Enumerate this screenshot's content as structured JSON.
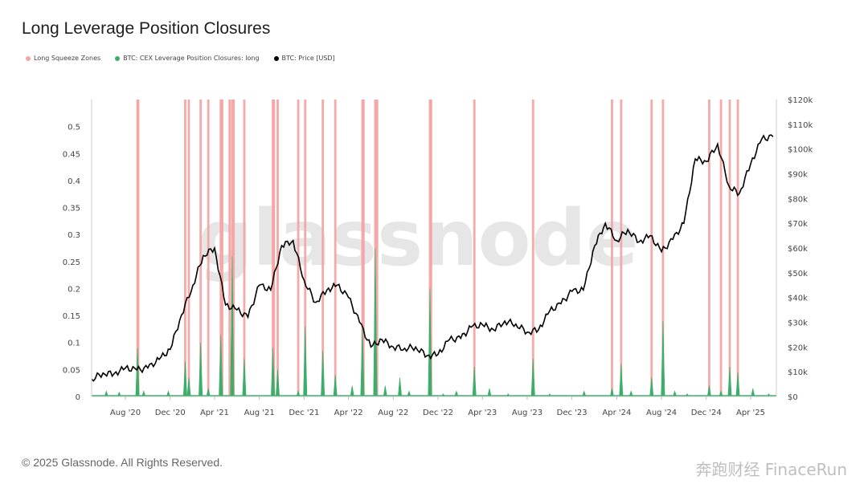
{
  "header": {
    "title": "Long Leverage Position Closures"
  },
  "legend": [
    {
      "label": "Long Squeeze Zones",
      "color": "#f4a4a4"
    },
    {
      "label": "BTC: CEX Leverage Position Closures: long",
      "color": "#3cae6a"
    },
    {
      "label": "BTC: Price [USD]",
      "color": "#000000"
    }
  ],
  "footer": {
    "copyright": "© 2025 Glassnode. All Rights Reserved.",
    "watermark2": "奔跑财经 FinaceRun"
  },
  "chart_data": {
    "type": "line",
    "watermark": "glassnode",
    "x_range": [
      "2020-05-01",
      "2025-06-10"
    ],
    "x_ticks": [
      "Aug '20",
      "Dec '20",
      "Apr '21",
      "Aug '21",
      "Dec '21",
      "Apr '22",
      "Aug '22",
      "Dec '22",
      "Apr '23",
      "Aug '23",
      "Dec '23",
      "Apr '24",
      "Aug '24",
      "Dec '24",
      "Apr '25"
    ],
    "x_tick_dates": [
      "2020-08-01",
      "2020-12-01",
      "2021-04-01",
      "2021-08-01",
      "2021-12-01",
      "2022-04-01",
      "2022-08-01",
      "2022-12-01",
      "2023-04-01",
      "2023-08-01",
      "2023-12-01",
      "2024-04-01",
      "2024-08-01",
      "2024-12-01",
      "2025-04-01"
    ],
    "y_left": {
      "min": 0,
      "max": 0.55,
      "ticks": [
        "0",
        "0.05",
        "0.1",
        "0.15",
        "0.2",
        "0.25",
        "0.3",
        "0.35",
        "0.4",
        "0.45",
        "0.5"
      ],
      "tick_values": [
        0,
        0.05,
        0.1,
        0.15,
        0.2,
        0.25,
        0.3,
        0.35,
        0.4,
        0.45,
        0.5
      ]
    },
    "y_right": {
      "min": 0,
      "max": 120000,
      "ticks": [
        "$0",
        "$10k",
        "$20k",
        "$30k",
        "$40k",
        "$50k",
        "$60k",
        "$70k",
        "$80k",
        "$90k",
        "$100k",
        "$110k",
        "$120k"
      ],
      "tick_values": [
        0,
        10000,
        20000,
        30000,
        40000,
        50000,
        60000,
        70000,
        80000,
        90000,
        100000,
        110000,
        120000
      ]
    },
    "series": [
      {
        "name": "BTC: Price [USD]",
        "axis": "right",
        "color": "#000000",
        "points": [
          [
            "2020-05-01",
            7000
          ],
          [
            "2020-06-01",
            9500
          ],
          [
            "2020-07-01",
            9200
          ],
          [
            "2020-08-01",
            11500
          ],
          [
            "2020-09-01",
            10700
          ],
          [
            "2020-10-01",
            11500
          ],
          [
            "2020-11-01",
            15000
          ],
          [
            "2020-12-01",
            19000
          ],
          [
            "2021-01-01",
            33000
          ],
          [
            "2021-02-01",
            45000
          ],
          [
            "2021-03-01",
            57000
          ],
          [
            "2021-04-01",
            60000
          ],
          [
            "2021-05-01",
            37000
          ],
          [
            "2021-06-01",
            35000
          ],
          [
            "2021-07-01",
            32000
          ],
          [
            "2021-08-01",
            45000
          ],
          [
            "2021-09-01",
            43000
          ],
          [
            "2021-10-01",
            61000
          ],
          [
            "2021-11-01",
            63000
          ],
          [
            "2021-12-01",
            47000
          ],
          [
            "2022-01-01",
            38000
          ],
          [
            "2022-02-01",
            43000
          ],
          [
            "2022-03-01",
            45000
          ],
          [
            "2022-04-01",
            40000
          ],
          [
            "2022-05-01",
            30000
          ],
          [
            "2022-06-01",
            20000
          ],
          [
            "2022-07-01",
            23000
          ],
          [
            "2022-08-01",
            20000
          ],
          [
            "2022-09-01",
            19500
          ],
          [
            "2022-10-01",
            20000
          ],
          [
            "2022-11-01",
            16500
          ],
          [
            "2022-12-01",
            17000
          ],
          [
            "2023-01-01",
            23000
          ],
          [
            "2023-02-01",
            23500
          ],
          [
            "2023-03-01",
            28000
          ],
          [
            "2023-04-01",
            29000
          ],
          [
            "2023-05-01",
            27000
          ],
          [
            "2023-06-01",
            30500
          ],
          [
            "2023-07-01",
            29300
          ],
          [
            "2023-08-01",
            26000
          ],
          [
            "2023-09-01",
            27000
          ],
          [
            "2023-10-01",
            34500
          ],
          [
            "2023-11-01",
            37500
          ],
          [
            "2023-12-01",
            42500
          ],
          [
            "2024-01-01",
            43000
          ],
          [
            "2024-02-01",
            61000
          ],
          [
            "2024-03-01",
            70000
          ],
          [
            "2024-04-01",
            63000
          ],
          [
            "2024-05-01",
            67500
          ],
          [
            "2024-06-01",
            62500
          ],
          [
            "2024-07-01",
            65000
          ],
          [
            "2024-08-01",
            58500
          ],
          [
            "2024-09-01",
            63500
          ],
          [
            "2024-10-01",
            70000
          ],
          [
            "2024-11-01",
            96000
          ],
          [
            "2024-12-01",
            95000
          ],
          [
            "2025-01-01",
            102000
          ],
          [
            "2025-02-01",
            85000
          ],
          [
            "2025-03-01",
            82000
          ],
          [
            "2025-04-01",
            94000
          ],
          [
            "2025-05-01",
            104000
          ],
          [
            "2025-06-01",
            105000
          ]
        ]
      },
      {
        "name": "BTC: CEX Leverage Position Closures: long",
        "axis": "left",
        "color": "#3cae6a",
        "spikes": [
          [
            "2020-06-10",
            0.01
          ],
          [
            "2020-07-15",
            0.008
          ],
          [
            "2020-09-03",
            0.09
          ],
          [
            "2020-09-20",
            0.01
          ],
          [
            "2020-11-26",
            0.01
          ],
          [
            "2021-01-11",
            0.065
          ],
          [
            "2021-01-21",
            0.035
          ],
          [
            "2021-02-22",
            0.1
          ],
          [
            "2021-03-15",
            0.015
          ],
          [
            "2021-04-18",
            0.115
          ],
          [
            "2021-05-19",
            0.26
          ],
          [
            "2021-06-21",
            0.07
          ],
          [
            "2021-09-07",
            0.09
          ],
          [
            "2021-09-20",
            0.05
          ],
          [
            "2021-11-15",
            0.01
          ],
          [
            "2021-12-04",
            0.13
          ],
          [
            "2022-01-21",
            0.085
          ],
          [
            "2022-02-24",
            0.04
          ],
          [
            "2022-04-11",
            0.02
          ],
          [
            "2022-05-09",
            0.13
          ],
          [
            "2022-06-13",
            0.275
          ],
          [
            "2022-07-10",
            0.02
          ],
          [
            "2022-08-19",
            0.035
          ],
          [
            "2022-09-13",
            0.01
          ],
          [
            "2022-11-09",
            0.2
          ],
          [
            "2022-12-15",
            0.005
          ],
          [
            "2023-01-20",
            0.01
          ],
          [
            "2023-03-10",
            0.055
          ],
          [
            "2023-04-20",
            0.015
          ],
          [
            "2023-06-10",
            0.005
          ],
          [
            "2023-08-17",
            0.07
          ],
          [
            "2023-10-01",
            0.005
          ],
          [
            "2024-01-03",
            0.01
          ],
          [
            "2024-03-19",
            0.015
          ],
          [
            "2024-04-13",
            0.06
          ],
          [
            "2024-05-10",
            0.01
          ],
          [
            "2024-07-05",
            0.035
          ],
          [
            "2024-08-05",
            0.14
          ],
          [
            "2024-09-06",
            0.01
          ],
          [
            "2024-10-10",
            0.005
          ],
          [
            "2024-12-09",
            0.02
          ],
          [
            "2025-01-10",
            0.01
          ],
          [
            "2025-02-03",
            0.055
          ],
          [
            "2025-02-25",
            0.045
          ],
          [
            "2025-04-07",
            0.015
          ],
          [
            "2025-05-20",
            0.005
          ]
        ]
      }
    ],
    "squeeze_zones": [
      "2020-09-03",
      "2020-09-05",
      "2021-01-11",
      "2021-01-21",
      "2021-02-22",
      "2021-03-15",
      "2021-04-18",
      "2021-04-22",
      "2021-05-12",
      "2021-05-19",
      "2021-05-23",
      "2021-06-21",
      "2021-09-07",
      "2021-09-10",
      "2021-09-20",
      "2021-11-15",
      "2021-12-04",
      "2022-01-21",
      "2022-02-24",
      "2022-05-09",
      "2022-05-12",
      "2022-06-13",
      "2022-06-18",
      "2022-11-09",
      "2022-11-12",
      "2023-03-10",
      "2023-08-17",
      "2024-03-19",
      "2024-04-13",
      "2024-07-05",
      "2024-08-05",
      "2024-12-09",
      "2025-01-10",
      "2025-02-03",
      "2025-02-25"
    ]
  }
}
